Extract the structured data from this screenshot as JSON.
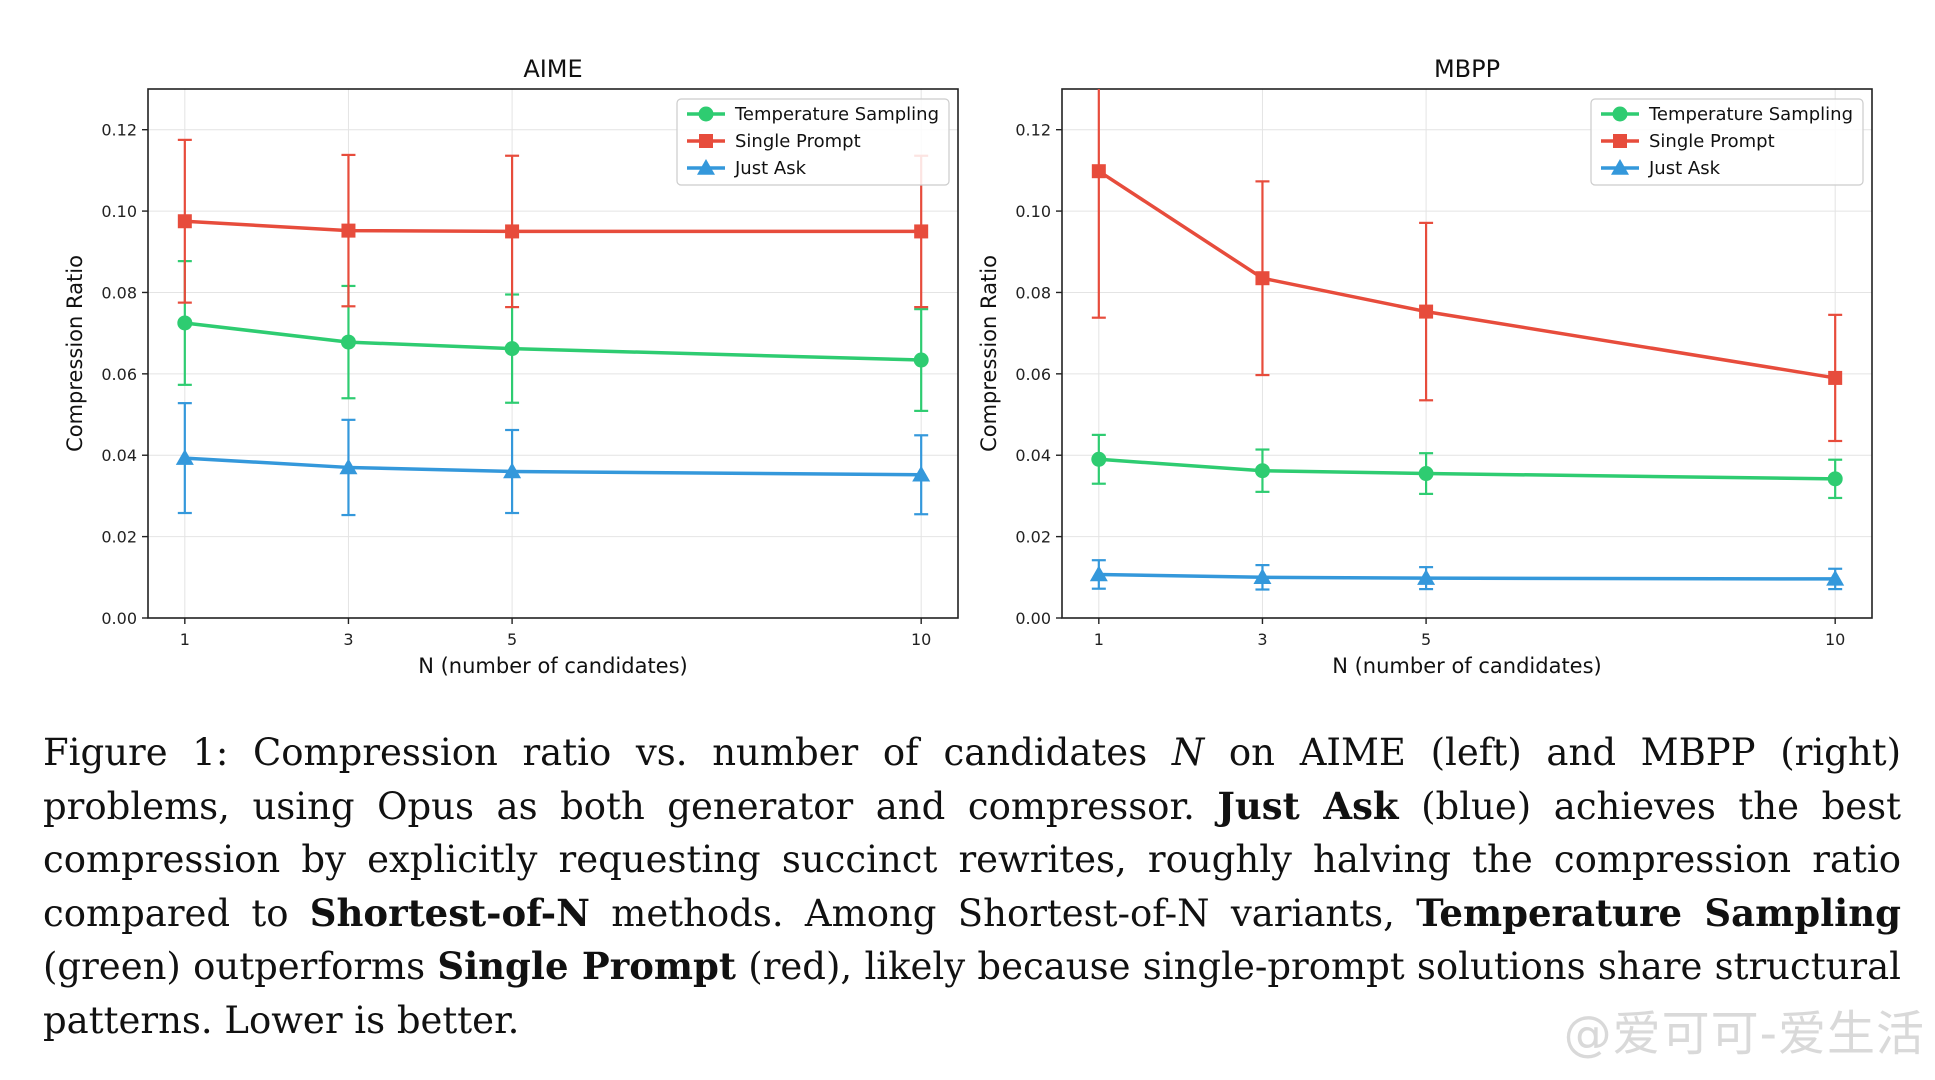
{
  "chart_data": [
    {
      "type": "line",
      "title": "AIME",
      "xlabel": "N (number of candidates)",
      "ylabel": "Compression Ratio",
      "x": [
        1,
        3,
        5,
        10
      ],
      "x_tick_labels": [
        "1",
        "3",
        "5",
        "10"
      ],
      "ylim": [
        0,
        0.13
      ],
      "y_ticks": [
        0,
        0.02,
        0.04,
        0.06,
        0.08,
        0.1,
        0.12
      ],
      "y_tick_labels": [
        "0.00",
        "0.02",
        "0.04",
        "0.06",
        "0.08",
        "0.10",
        "0.12"
      ],
      "grid": true,
      "legend_position": "top-right",
      "series": [
        {
          "name": "Temperature Sampling",
          "color": "#2ecc71",
          "marker": "circle",
          "values": [
            0.0725,
            0.0678,
            0.0662,
            0.0634
          ],
          "errors": [
            0.0152,
            0.0138,
            0.0133,
            0.0125
          ]
        },
        {
          "name": "Single Prompt",
          "color": "#e74c3c",
          "marker": "square",
          "values": [
            0.0975,
            0.0952,
            0.095,
            0.095
          ],
          "errors": [
            0.02,
            0.0186,
            0.0186,
            0.0186
          ]
        },
        {
          "name": "Just Ask",
          "color": "#3498db",
          "marker": "triangle",
          "values": [
            0.0393,
            0.037,
            0.036,
            0.0352
          ],
          "errors": [
            0.0135,
            0.0117,
            0.0102,
            0.0097
          ]
        }
      ]
    },
    {
      "type": "line",
      "title": "MBPP",
      "xlabel": "N (number of candidates)",
      "ylabel": "Compression Ratio",
      "x": [
        1,
        3,
        5,
        10
      ],
      "x_tick_labels": [
        "1",
        "3",
        "5",
        "10"
      ],
      "ylim": [
        0,
        0.13
      ],
      "y_ticks": [
        0,
        0.02,
        0.04,
        0.06,
        0.08,
        0.1,
        0.12
      ],
      "y_tick_labels": [
        "0.00",
        "0.02",
        "0.04",
        "0.06",
        "0.08",
        "0.10",
        "0.12"
      ],
      "grid": true,
      "legend_position": "top-right",
      "series": [
        {
          "name": "Temperature Sampling",
          "color": "#2ecc71",
          "marker": "circle",
          "values": [
            0.039,
            0.0362,
            0.0355,
            0.0342
          ],
          "errors": [
            0.006,
            0.0052,
            0.005,
            0.0047
          ]
        },
        {
          "name": "Single Prompt",
          "color": "#e74c3c",
          "marker": "square",
          "values": [
            0.1098,
            0.0835,
            0.0753,
            0.059
          ],
          "errors": [
            0.036,
            0.0238,
            0.0218,
            0.0155
          ]
        },
        {
          "name": "Just Ask",
          "color": "#3498db",
          "marker": "triangle",
          "values": [
            0.0107,
            0.01,
            0.0098,
            0.0096
          ],
          "errors": [
            0.0035,
            0.003,
            0.0027,
            0.0025
          ]
        }
      ]
    }
  ],
  "caption": {
    "p1": "Figure 1: Compression ratio vs. number of candidates ",
    "var_n": "N",
    "p2": " on AIME (left) and MBPP (right) problems, using Opus as both generator and compressor. ",
    "b1": "Just Ask",
    "p3": " (blue) achieves the best compression by explicitly requesting succinct rewrites, roughly halving the compression ratio compared to ",
    "b2": "Shortest-of-N",
    "p4": " methods.  Among Shortest-of-N variants, ",
    "b3": "Temperature Sampling",
    "p5": " (green) outperforms ",
    "b4": "Single Prompt",
    "p6": " (red), likely because single-prompt solutions share structural patterns. Lower is better."
  },
  "watermark": "@爱可可-爱生活"
}
